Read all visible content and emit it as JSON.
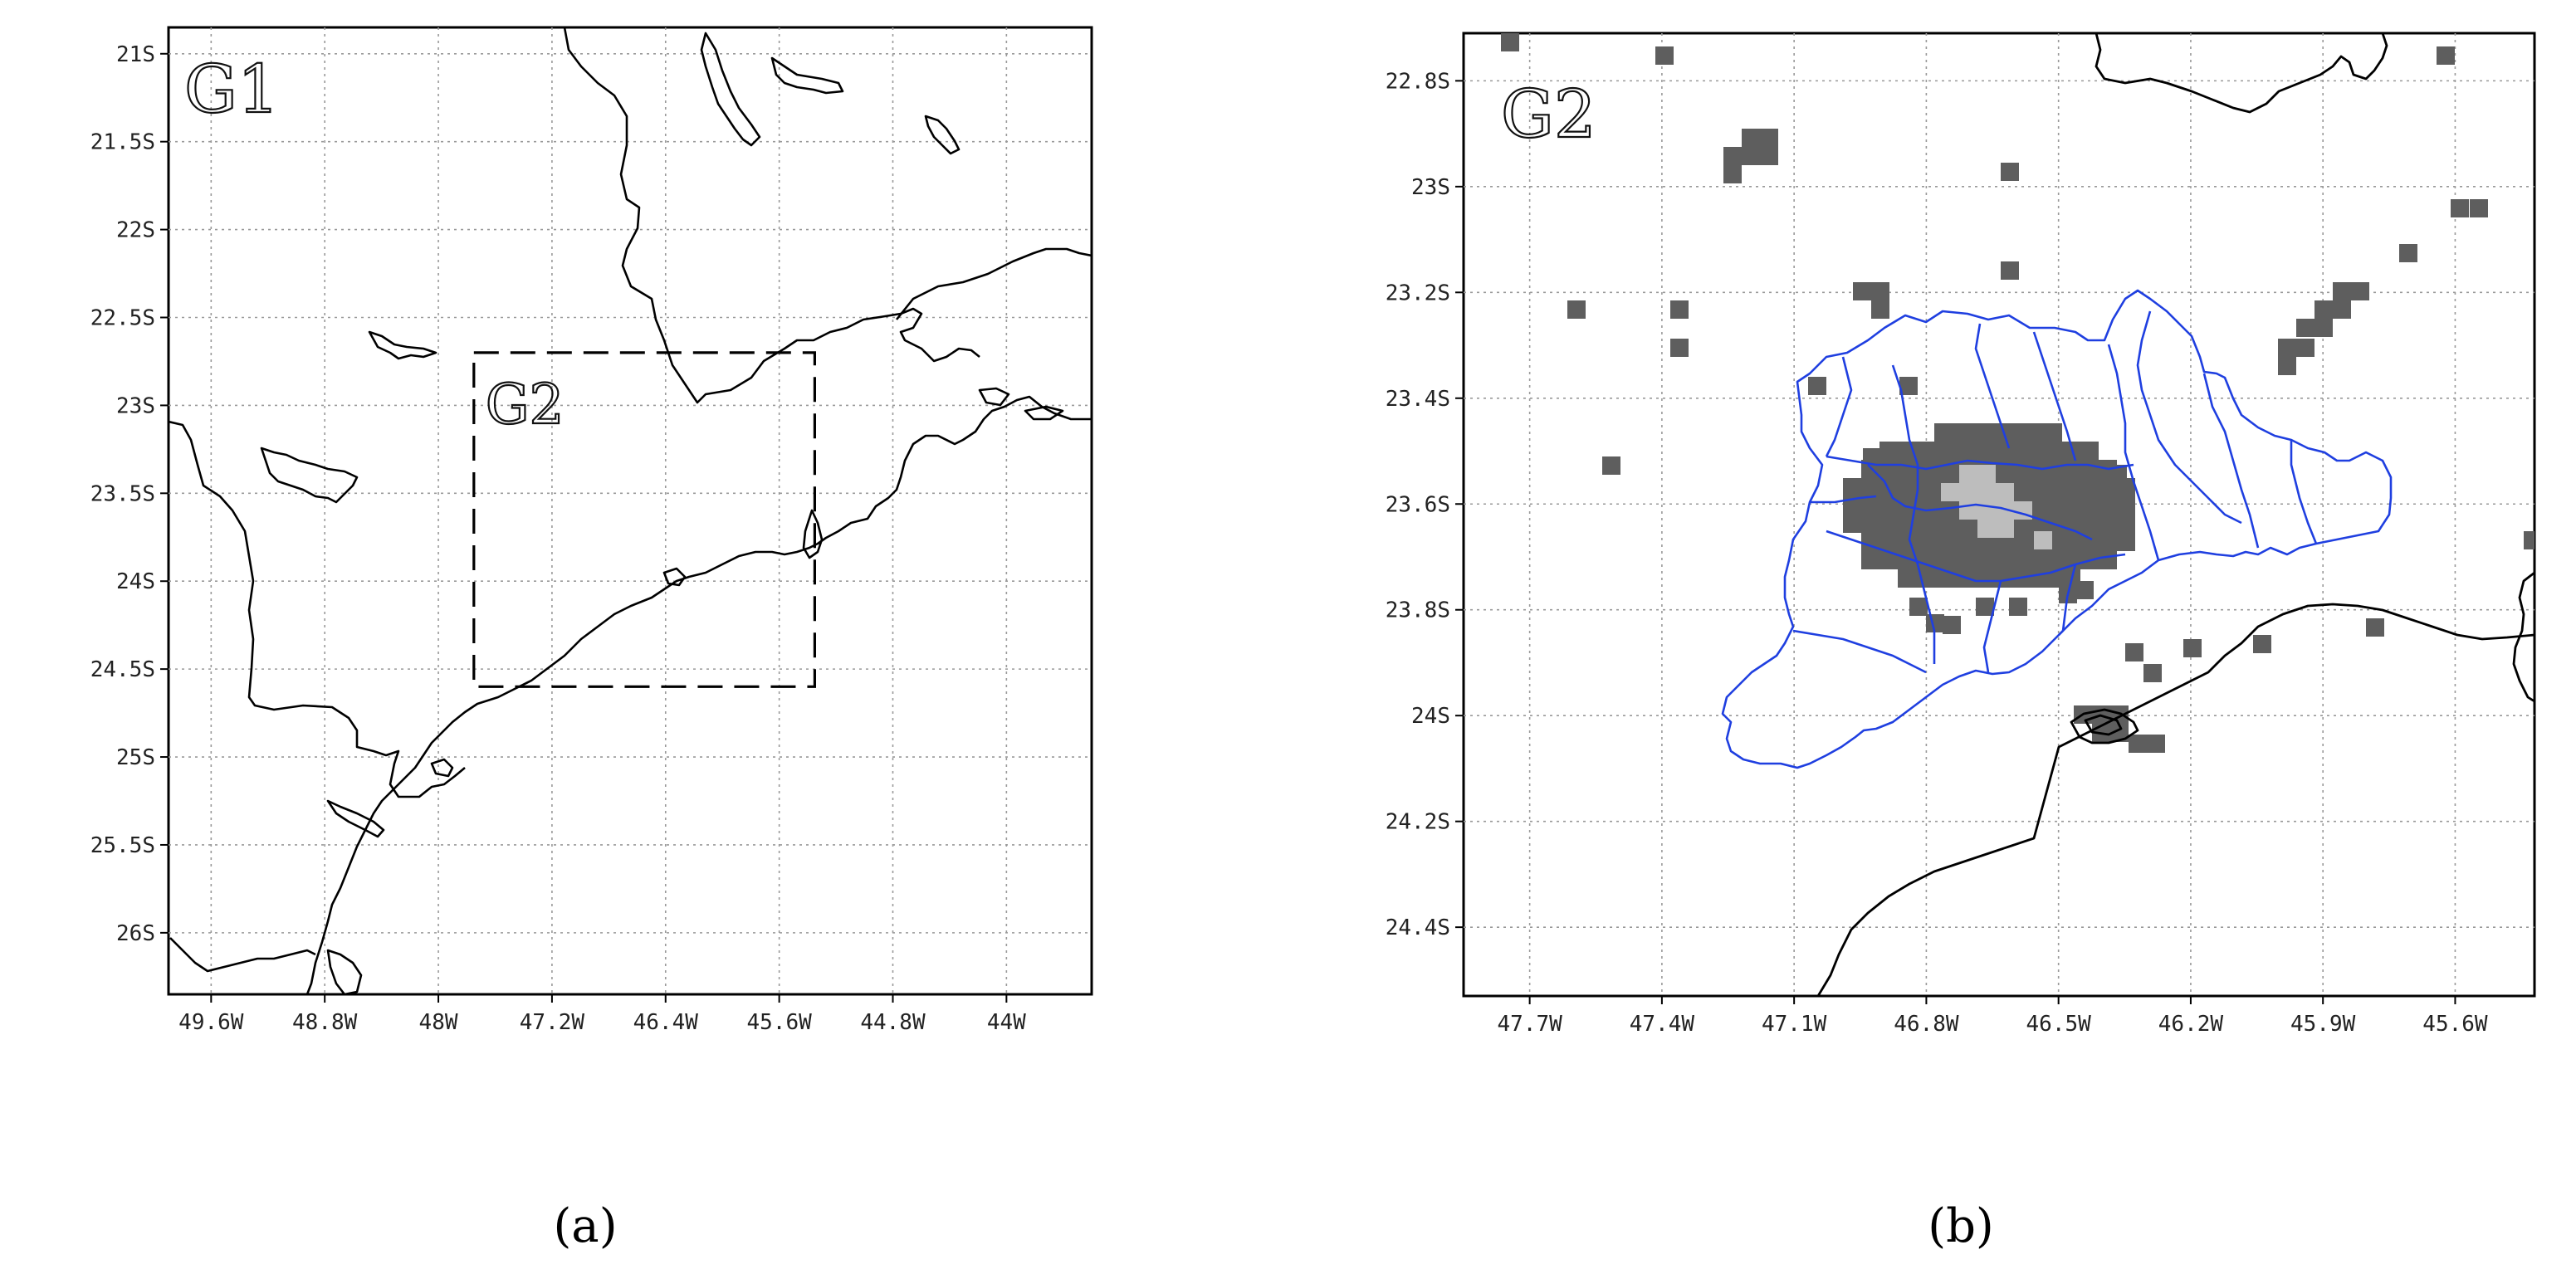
{
  "panels": [
    {
      "id": "a",
      "caption": "(a)",
      "map_label": "G1",
      "inset_label": "G2",
      "x_ticks": [
        "49.6W",
        "48.8W",
        "48W",
        "47.2W",
        "46.4W",
        "45.6W",
        "44.8W",
        "44W"
      ],
      "y_ticks": [
        "21S",
        "21.5S",
        "22S",
        "22.5S",
        "23S",
        "23.5S",
        "24S",
        "24.5S",
        "25S",
        "25.5S",
        "26S"
      ],
      "x_range_lon": [
        -49.9,
        -43.4
      ],
      "y_range_lat": [
        -26.35,
        -20.85
      ],
      "inset_box_lon": [
        -47.75,
        -45.35
      ],
      "inset_box_lat": [
        -24.6,
        -22.7
      ]
    },
    {
      "id": "b",
      "caption": "(b)",
      "map_label": "G2",
      "x_ticks": [
        "47.7W",
        "47.4W",
        "47.1W",
        "46.8W",
        "46.5W",
        "46.2W",
        "45.9W",
        "45.6W"
      ],
      "y_ticks": [
        "22.8S",
        "23S",
        "23.2S",
        "23.4S",
        "23.6S",
        "23.8S",
        "24S",
        "24.2S",
        "24.4S"
      ],
      "x_range_lon": [
        -47.85,
        -45.42
      ],
      "y_range_lat": [
        -24.53,
        -22.71
      ],
      "legend_colors": {
        "urban_dense": "#5e5e5e",
        "urban_core": "#bdbdbd",
        "municipal_boundaries": "#1f3fe0",
        "coastline": "#000000"
      }
    }
  ]
}
